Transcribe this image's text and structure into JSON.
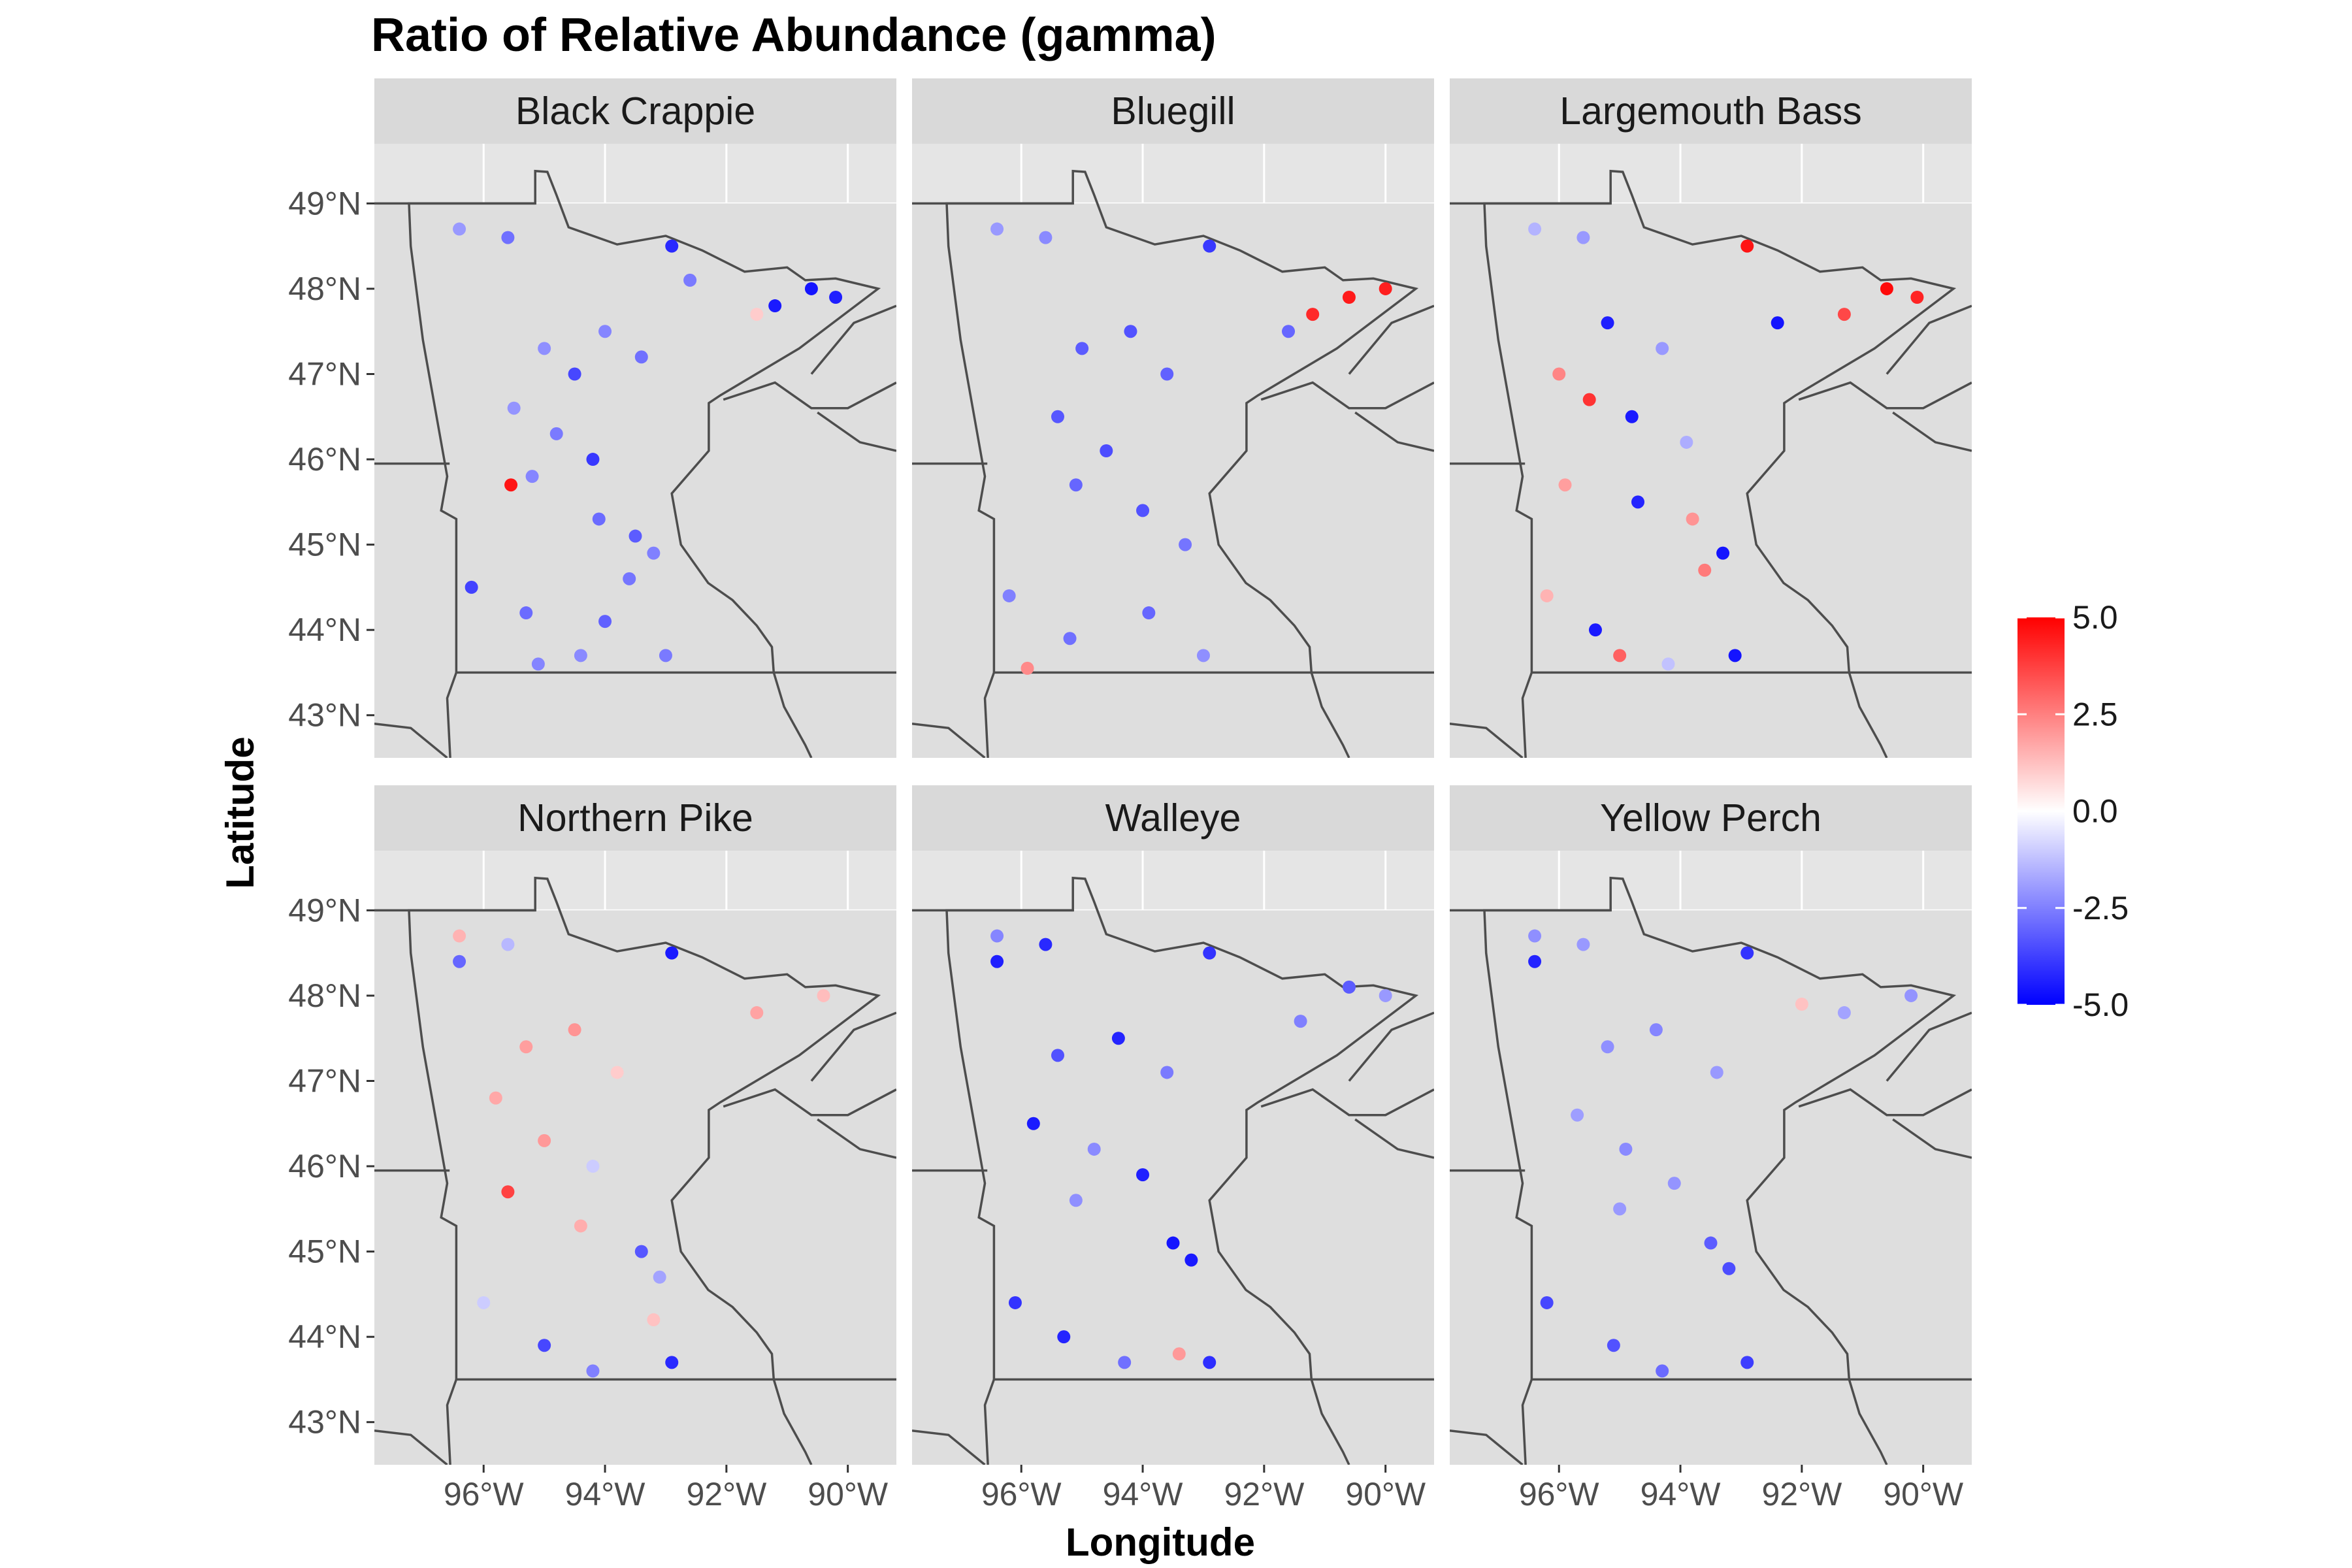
{
  "chart_data": {
    "type": "scatter",
    "title": "Ratio of Relative Abundance (gamma)",
    "xlabel": "Longitude",
    "ylabel": "Latitude",
    "xlim": [
      -97.8,
      -89.2
    ],
    "ylim": [
      42.5,
      49.7
    ],
    "x_ticks": [
      {
        "value": -96,
        "label": "96°W"
      },
      {
        "value": -94,
        "label": "94°W"
      },
      {
        "value": -92,
        "label": "92°W"
      },
      {
        "value": -90,
        "label": "90°W"
      }
    ],
    "y_ticks": [
      {
        "value": 49,
        "label": "49°N"
      },
      {
        "value": 48,
        "label": "48°N"
      },
      {
        "value": 47,
        "label": "47°N"
      },
      {
        "value": 46,
        "label": "46°N"
      },
      {
        "value": 45,
        "label": "45°N"
      },
      {
        "value": 44,
        "label": "44°N"
      },
      {
        "value": 43,
        "label": "43°N"
      }
    ],
    "grid": true,
    "legend": {
      "position": "right",
      "min": -5,
      "max": 5,
      "low_color": "#0000ff",
      "mid_color": "#ffffff",
      "high_color": "#ff0000",
      "ticks": [
        {
          "value": 5,
          "label": "5.0"
        },
        {
          "value": 2.5,
          "label": "2.5"
        },
        {
          "value": 0,
          "label": "0.0"
        },
        {
          "value": -2.5,
          "label": "-2.5"
        },
        {
          "value": -5,
          "label": "-5.0"
        }
      ]
    },
    "colors": {
      "panel_background": "#e5e5e5",
      "land": "#dedede",
      "border_line": "#4d4d4d",
      "strip_background": "#d9d9d9",
      "grid_line": "#ffffff"
    },
    "facets": [
      {
        "name": "Black Crappie",
        "points": [
          {
            "lon": -96.4,
            "lat": 48.7,
            "value": -2.0
          },
          {
            "lon": -95.6,
            "lat": 48.6,
            "value": -2.8
          },
          {
            "lon": -92.9,
            "lat": 48.5,
            "value": -4.2
          },
          {
            "lon": -92.6,
            "lat": 48.1,
            "value": -2.6
          },
          {
            "lon": -91.2,
            "lat": 47.8,
            "value": -4.5
          },
          {
            "lon": -90.6,
            "lat": 48.0,
            "value": -4.6
          },
          {
            "lon": -90.2,
            "lat": 47.9,
            "value": -4.4
          },
          {
            "lon": -91.5,
            "lat": 47.7,
            "value": 1.0
          },
          {
            "lon": -95.0,
            "lat": 47.3,
            "value": -2.2
          },
          {
            "lon": -94.5,
            "lat": 47.0,
            "value": -3.6
          },
          {
            "lon": -94.0,
            "lat": 47.5,
            "value": -2.4
          },
          {
            "lon": -93.4,
            "lat": 47.2,
            "value": -2.8
          },
          {
            "lon": -95.5,
            "lat": 46.6,
            "value": -2.1
          },
          {
            "lon": -94.8,
            "lat": 46.3,
            "value": -2.6
          },
          {
            "lon": -94.2,
            "lat": 46.0,
            "value": -3.9
          },
          {
            "lon": -95.2,
            "lat": 45.8,
            "value": -2.4
          },
          {
            "lon": -95.55,
            "lat": 45.7,
            "value": 4.6
          },
          {
            "lon": -94.1,
            "lat": 45.3,
            "value": -2.9
          },
          {
            "lon": -93.5,
            "lat": 45.1,
            "value": -3.2
          },
          {
            "lon": -93.2,
            "lat": 44.9,
            "value": -2.5
          },
          {
            "lon": -93.6,
            "lat": 44.6,
            "value": -2.7
          },
          {
            "lon": -96.2,
            "lat": 44.5,
            "value": -3.7
          },
          {
            "lon": -95.3,
            "lat": 44.2,
            "value": -2.9
          },
          {
            "lon": -94.0,
            "lat": 44.1,
            "value": -3.1
          },
          {
            "lon": -95.1,
            "lat": 43.6,
            "value": -2.4
          },
          {
            "lon": -94.4,
            "lat": 43.7,
            "value": -2.3
          },
          {
            "lon": -93.0,
            "lat": 43.7,
            "value": -2.6
          }
        ]
      },
      {
        "name": "Bluegill",
        "points": [
          {
            "lon": -96.4,
            "lat": 48.7,
            "value": -2.0
          },
          {
            "lon": -95.6,
            "lat": 48.6,
            "value": -2.3
          },
          {
            "lon": -92.9,
            "lat": 48.5,
            "value": -3.9
          },
          {
            "lon": -91.2,
            "lat": 47.7,
            "value": 4.2
          },
          {
            "lon": -90.6,
            "lat": 47.9,
            "value": 4.5
          },
          {
            "lon": -90.0,
            "lat": 48.0,
            "value": 4.4
          },
          {
            "lon": -91.6,
            "lat": 47.5,
            "value": -3.0
          },
          {
            "lon": -95.0,
            "lat": 47.3,
            "value": -3.2
          },
          {
            "lon": -94.2,
            "lat": 47.5,
            "value": -3.4
          },
          {
            "lon": -93.6,
            "lat": 47.0,
            "value": -3.1
          },
          {
            "lon": -95.4,
            "lat": 46.5,
            "value": -3.3
          },
          {
            "lon": -94.6,
            "lat": 46.1,
            "value": -3.5
          },
          {
            "lon": -95.1,
            "lat": 45.7,
            "value": -3.0
          },
          {
            "lon": -94.0,
            "lat": 45.4,
            "value": -3.4
          },
          {
            "lon": -93.3,
            "lat": 45.0,
            "value": -2.7
          },
          {
            "lon": -96.2,
            "lat": 44.4,
            "value": -2.5
          },
          {
            "lon": -95.2,
            "lat": 43.9,
            "value": -2.8
          },
          {
            "lon": -95.9,
            "lat": 43.55,
            "value": 2.3
          },
          {
            "lon": -93.9,
            "lat": 44.2,
            "value": -3.0
          },
          {
            "lon": -93.0,
            "lat": 43.7,
            "value": -2.2
          }
        ]
      },
      {
        "name": "Largemouth Bass",
        "points": [
          {
            "lon": -96.4,
            "lat": 48.7,
            "value": -1.5
          },
          {
            "lon": -95.6,
            "lat": 48.6,
            "value": -2.0
          },
          {
            "lon": -92.9,
            "lat": 48.5,
            "value": 4.6
          },
          {
            "lon": -90.6,
            "lat": 48.0,
            "value": 4.8
          },
          {
            "lon": -90.1,
            "lat": 47.9,
            "value": 4.3
          },
          {
            "lon": -91.3,
            "lat": 47.7,
            "value": 3.6
          },
          {
            "lon": -92.4,
            "lat": 47.6,
            "value": -4.6
          },
          {
            "lon": -95.2,
            "lat": 47.6,
            "value": -4.4
          },
          {
            "lon": -94.3,
            "lat": 47.3,
            "value": -2.0
          },
          {
            "lon": -96.0,
            "lat": 47.0,
            "value": 2.4
          },
          {
            "lon": -95.5,
            "lat": 46.7,
            "value": 4.0
          },
          {
            "lon": -94.8,
            "lat": 46.5,
            "value": -4.5
          },
          {
            "lon": -93.9,
            "lat": 46.2,
            "value": -1.6
          },
          {
            "lon": -95.9,
            "lat": 45.7,
            "value": 1.9
          },
          {
            "lon": -94.7,
            "lat": 45.5,
            "value": -4.3
          },
          {
            "lon": -93.8,
            "lat": 45.3,
            "value": 2.1
          },
          {
            "lon": -93.3,
            "lat": 44.9,
            "value": -4.6
          },
          {
            "lon": -93.6,
            "lat": 44.7,
            "value": 2.6
          },
          {
            "lon": -96.2,
            "lat": 44.4,
            "value": 1.5
          },
          {
            "lon": -95.4,
            "lat": 44.0,
            "value": -4.5
          },
          {
            "lon": -95.0,
            "lat": 43.7,
            "value": 3.1
          },
          {
            "lon": -94.2,
            "lat": 43.6,
            "value": -1.2
          },
          {
            "lon": -93.1,
            "lat": 43.7,
            "value": -4.6
          }
        ]
      },
      {
        "name": "Northern Pike",
        "points": [
          {
            "lon": -96.4,
            "lat": 48.7,
            "value": 1.5
          },
          {
            "lon": -96.4,
            "lat": 48.4,
            "value": -3.0
          },
          {
            "lon": -95.6,
            "lat": 48.6,
            "value": -1.4
          },
          {
            "lon": -92.9,
            "lat": 48.5,
            "value": -4.5
          },
          {
            "lon": -90.4,
            "lat": 48.0,
            "value": 1.3
          },
          {
            "lon": -91.5,
            "lat": 47.8,
            "value": 1.8
          },
          {
            "lon": -95.3,
            "lat": 47.4,
            "value": 1.9
          },
          {
            "lon": -94.5,
            "lat": 47.6,
            "value": 2.1
          },
          {
            "lon": -93.8,
            "lat": 47.1,
            "value": 1.0
          },
          {
            "lon": -95.8,
            "lat": 46.8,
            "value": 1.7
          },
          {
            "lon": -95.0,
            "lat": 46.3,
            "value": 2.0
          },
          {
            "lon": -94.2,
            "lat": 46.0,
            "value": -1.0
          },
          {
            "lon": -95.6,
            "lat": 45.7,
            "value": 3.7
          },
          {
            "lon": -94.4,
            "lat": 45.3,
            "value": 1.6
          },
          {
            "lon": -93.4,
            "lat": 45.0,
            "value": -3.3
          },
          {
            "lon": -93.1,
            "lat": 44.7,
            "value": -1.8
          },
          {
            "lon": -96.0,
            "lat": 44.4,
            "value": -1.0
          },
          {
            "lon": -95.0,
            "lat": 43.9,
            "value": -3.6
          },
          {
            "lon": -94.2,
            "lat": 43.6,
            "value": -2.5
          },
          {
            "lon": -93.2,
            "lat": 44.2,
            "value": 1.2
          },
          {
            "lon": -92.9,
            "lat": 43.7,
            "value": -4.2
          }
        ]
      },
      {
        "name": "Walleye",
        "points": [
          {
            "lon": -96.4,
            "lat": 48.7,
            "value": -2.4
          },
          {
            "lon": -96.4,
            "lat": 48.4,
            "value": -4.4
          },
          {
            "lon": -95.6,
            "lat": 48.6,
            "value": -4.2
          },
          {
            "lon": -92.9,
            "lat": 48.5,
            "value": -4.0
          },
          {
            "lon": -90.6,
            "lat": 48.1,
            "value": -3.2
          },
          {
            "lon": -90.0,
            "lat": 48.0,
            "value": -2.0
          },
          {
            "lon": -91.4,
            "lat": 47.7,
            "value": -2.5
          },
          {
            "lon": -95.4,
            "lat": 47.3,
            "value": -3.4
          },
          {
            "lon": -94.4,
            "lat": 47.5,
            "value": -4.3
          },
          {
            "lon": -93.6,
            "lat": 47.1,
            "value": -2.6
          },
          {
            "lon": -95.8,
            "lat": 46.5,
            "value": -4.5
          },
          {
            "lon": -94.8,
            "lat": 46.2,
            "value": -2.3
          },
          {
            "lon": -94.0,
            "lat": 45.9,
            "value": -4.4
          },
          {
            "lon": -95.1,
            "lat": 45.6,
            "value": -2.2
          },
          {
            "lon": -93.5,
            "lat": 45.1,
            "value": -4.6
          },
          {
            "lon": -93.2,
            "lat": 44.9,
            "value": -4.5
          },
          {
            "lon": -96.1,
            "lat": 44.4,
            "value": -4.0
          },
          {
            "lon": -95.3,
            "lat": 44.0,
            "value": -4.3
          },
          {
            "lon": -94.3,
            "lat": 43.7,
            "value": -2.8
          },
          {
            "lon": -93.4,
            "lat": 43.8,
            "value": 2.0
          },
          {
            "lon": -92.9,
            "lat": 43.7,
            "value": -4.1
          }
        ]
      },
      {
        "name": "Yellow Perch",
        "points": [
          {
            "lon": -96.4,
            "lat": 48.7,
            "value": -2.2
          },
          {
            "lon": -96.4,
            "lat": 48.4,
            "value": -4.3
          },
          {
            "lon": -95.6,
            "lat": 48.6,
            "value": -2.0
          },
          {
            "lon": -92.9,
            "lat": 48.5,
            "value": -4.0
          },
          {
            "lon": -90.2,
            "lat": 48.0,
            "value": -2.1
          },
          {
            "lon": -91.3,
            "lat": 47.8,
            "value": -1.8
          },
          {
            "lon": -92.0,
            "lat": 47.9,
            "value": 1.2
          },
          {
            "lon": -95.2,
            "lat": 47.4,
            "value": -2.2
          },
          {
            "lon": -94.4,
            "lat": 47.6,
            "value": -2.4
          },
          {
            "lon": -93.4,
            "lat": 47.1,
            "value": -2.0
          },
          {
            "lon": -95.7,
            "lat": 46.6,
            "value": -1.9
          },
          {
            "lon": -94.9,
            "lat": 46.2,
            "value": -2.3
          },
          {
            "lon": -94.1,
            "lat": 45.8,
            "value": -2.1
          },
          {
            "lon": -95.0,
            "lat": 45.5,
            "value": -2.0
          },
          {
            "lon": -93.5,
            "lat": 45.1,
            "value": -3.2
          },
          {
            "lon": -93.2,
            "lat": 44.8,
            "value": -3.5
          },
          {
            "lon": -96.2,
            "lat": 44.4,
            "value": -3.6
          },
          {
            "lon": -95.1,
            "lat": 43.9,
            "value": -3.4
          },
          {
            "lon": -94.3,
            "lat": 43.6,
            "value": -2.9
          },
          {
            "lon": -92.9,
            "lat": 43.7,
            "value": -3.8
          }
        ]
      }
    ]
  }
}
